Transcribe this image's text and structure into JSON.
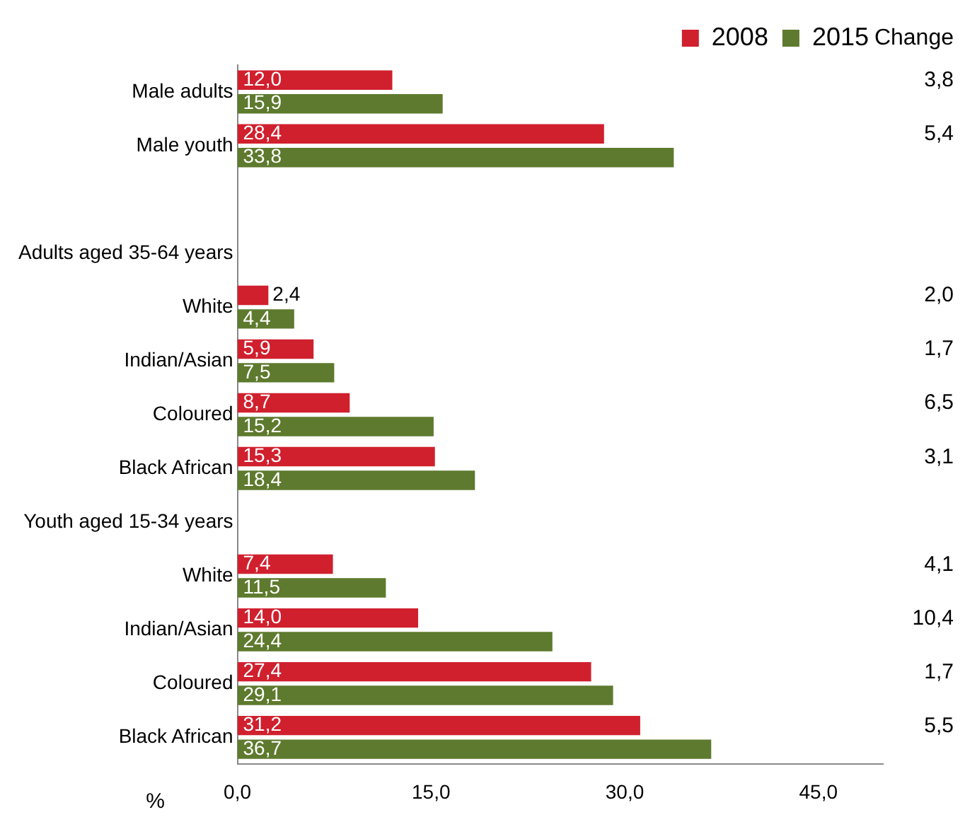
{
  "chart_data": {
    "type": "bar",
    "orientation": "horizontal",
    "xlabel": "%",
    "categories": [
      "Male adults",
      "Male youth",
      null,
      "Adults aged 35-64 years",
      "White",
      "Indian/Asian",
      "Coloured",
      "Black African",
      "Youth aged 15-34 years",
      "White",
      "Indian/Asian",
      "Coloured",
      "Black African"
    ],
    "series": [
      {
        "name": "2008",
        "color": "#d0202e",
        "values": [
          12.0,
          28.4,
          null,
          null,
          2.4,
          5.9,
          8.7,
          15.3,
          null,
          7.4,
          14.0,
          27.4,
          31.2
        ],
        "value_labels": [
          "12,0",
          "28,4",
          null,
          null,
          "2,4",
          "5,9",
          "8,7",
          "15,3",
          null,
          "7,4",
          "14,0",
          "27,4",
          "31,2"
        ]
      },
      {
        "name": "2015",
        "color": "#5e7a2e",
        "values": [
          15.9,
          33.8,
          null,
          null,
          4.4,
          7.5,
          15.2,
          18.4,
          null,
          11.5,
          24.4,
          29.1,
          36.7
        ],
        "value_labels": [
          "15,9",
          "33,8",
          null,
          null,
          "4,4",
          "7,5",
          "15,2",
          "18,4",
          null,
          "11,5",
          "24,4",
          "29,1",
          "36,7"
        ]
      }
    ],
    "xlim": [
      0,
      50
    ],
    "xticks": [
      {
        "value": 0,
        "label": "0,0"
      },
      {
        "value": 15,
        "label": "15,0"
      },
      {
        "value": 30,
        "label": "30,0"
      },
      {
        "value": 45,
        "label": "45,0"
      }
    ],
    "grid": false,
    "legend": "top right",
    "annotations": [
      "Change",
      "3,8",
      "5,4",
      "2,0",
      "1,7",
      "6,5",
      "3,1",
      "4,1",
      "10,4",
      "1,7",
      "5,5"
    ]
  }
}
